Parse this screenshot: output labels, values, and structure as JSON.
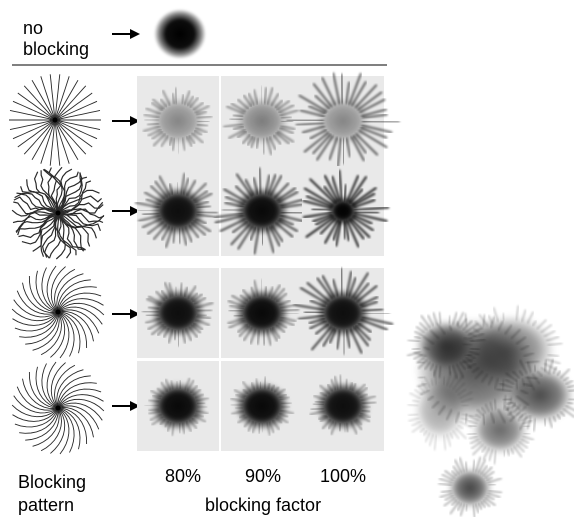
{
  "top_label": "no\nblocking",
  "row_label_line1": "Blocking",
  "row_label_line2": "pattern",
  "percent_labels": [
    "80%",
    "90%",
    "100%"
  ],
  "axis_label": "blocking factor",
  "colors": {
    "ink": "#000000",
    "panel": "#e9e9e9",
    "pattern_line": "#2a2a2a"
  },
  "patterns": [
    {
      "style": "straight-radial",
      "density": "thin"
    },
    {
      "style": "wavy-radial",
      "density": "dense"
    },
    {
      "style": "spiral-radial",
      "density": "thin"
    },
    {
      "style": "spiral-radial",
      "density": "thin"
    }
  ],
  "grid": [
    [
      {
        "darkness": 0.55,
        "spikes": 0.25
      },
      {
        "darkness": 0.6,
        "spikes": 0.35
      },
      {
        "darkness": 0.55,
        "spikes": 1.0
      }
    ],
    [
      {
        "darkness": 0.95,
        "spikes": 0.5
      },
      {
        "darkness": 0.97,
        "spikes": 0.7
      },
      {
        "darkness": 1.0,
        "spikes": 1.0
      }
    ],
    [
      {
        "darkness": 0.95,
        "spikes": 0.25
      },
      {
        "darkness": 0.97,
        "spikes": 0.25
      },
      {
        "darkness": 0.95,
        "spikes": 0.8
      }
    ],
    [
      {
        "darkness": 0.97,
        "spikes": 0.1
      },
      {
        "darkness": 0.97,
        "spikes": 0.1
      },
      {
        "darkness": 0.95,
        "spikes": 0.15
      }
    ]
  ]
}
